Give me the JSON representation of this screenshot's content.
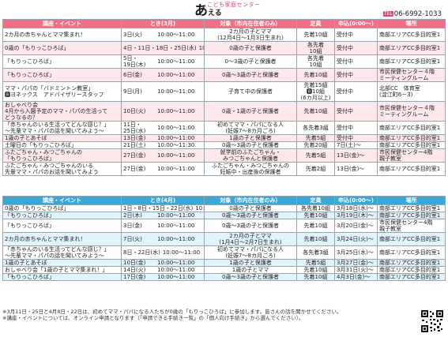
{
  "header": {
    "subtitle": "こども家庭センター",
    "brand_big": "あ",
    "brand_small": "える",
    "phone_icon": "TEL",
    "phone": "06-6992-1033"
  },
  "columns_march": [
    "講座・イベント",
    "とき(3月)",
    "対象（市内在住者のみ）",
    "定員",
    "申込(0:00～)",
    "場所"
  ],
  "columns_april": [
    "講座・イベント",
    "とき(4月)",
    "対象（市内在住者のみ）",
    "定員",
    "申込(0:00～)",
    "場所"
  ],
  "march_rows": [
    {
      "event": "2カ月の赤ちゃんとママ集まれ！",
      "date": "3日(火)",
      "time": "10:00～11:00",
      "target": "2カ月の子とママ\n(12月4日～1月3日生まれ)",
      "capacity": "先着10組",
      "apply": "受付中",
      "place": "南部エリアCC多目的室1"
    },
    {
      "event": "0歳の「もりっこひろば」",
      "date": "4日・11日・18日・25日(水)",
      "time": "10:00～11:00",
      "target": "0歳の子と保護者",
      "capacity": "各先着\n10組",
      "apply": "受付中",
      "place": "南部エリアCC多目的室1"
    },
    {
      "event": "「もりっこひろば」",
      "date": "5日・\n19日(木)",
      "time": "10:00～11:00",
      "target": "0～3歳の子と保護者",
      "capacity": "各先着\n10組",
      "apply": "受付中",
      "place": "南部エリアCC多目的室1"
    },
    {
      "event": "「もりっこひろば」",
      "date": "6日(金)",
      "time": "10:00～11:00",
      "target": "0歳～3歳の子と保護者",
      "capacity": "先着10組",
      "apply": "受付中",
      "place": "市民保健センター４階\nミーティングルーム"
    },
    {
      "event": "ママ・パパの「バドミントン教室」\n🅱ヨネックス　アドバイザリースタッフ",
      "date": "9日(月)",
      "time": "10:00～11:00",
      "target": "子育て中の保護者",
      "capacity": "先着15組\n🅱10組\n(6カ月以上)",
      "apply": "受付中",
      "place": "北部CC　体育室\n(淀江町6－3)"
    },
    {
      "event": "おしゃべり会\n4月から入園予定のママ・パパの生活って\nどうなるの？",
      "date": "10日(火)",
      "time": "10:00～11:00",
      "target": "0歳・1歳の子と保護者",
      "capacity": "先着10組",
      "apply": "受付中",
      "place": "市民保健センター４階\nミーティングルーム"
    },
    {
      "event": "「赤ちゃんのいる生活ってどんな感じ？」\n～先輩ママ・パパの話を聞いてみよう～",
      "date": "11日・\n25日(水)",
      "time": "10:00～11:00",
      "target": "初めてママ・パパになる人\n(妊娠7～8カ月ごろ)",
      "capacity": "各先着3組",
      "apply": "受付中",
      "place": "南部エリアCC多目的室1"
    },
    {
      "event": "1歳の子とあそぼ",
      "date": "13日(金)",
      "time": "10:00～11:00",
      "target": "1歳の子と保護者",
      "capacity": "先着5組",
      "apply": "受付中",
      "place": "南部エリアCC多目的室1"
    },
    {
      "event": "土曜日の「もりっこひろば」",
      "date": "21日(土)",
      "time": "10:00～11:30",
      "target": "0歳～3歳の子と保護者",
      "capacity": "先着20組",
      "apply": "7日(土)～",
      "place": "南部エリアCC多目的室1"
    },
    {
      "event": "ふたごちゃん・みつごちゃんの\n「もりっこひろば」",
      "date": "27日(金)",
      "time": "10:00～11:00",
      "target": "就学前のふたごちゃん・\nみつごちゃんと保護者",
      "capacity": "先着5組",
      "apply": "13日(金)～",
      "place": "市民保健センター4階\n親子教室"
    },
    {
      "event": "ふたごちゃん・みつごちゃんのいる\n先輩ママ・パパのお話を聞いてみよう",
      "date": "27日(金)",
      "time": "10:00～11:00",
      "target": "ふたごちゃん・みつごちゃんの\n妊娠中・出産後の保護者",
      "capacity": "先着2組",
      "apply": "13日(金)～",
      "place": "南部エリアCC多目的室1"
    }
  ],
  "april_rows": [
    {
      "event": "0歳の「もりっこひろば」",
      "date": "1日・8日・15日・22日(水)",
      "time": "10:00～11:00",
      "target": "0歳の子と保護者",
      "capacity": "各先着10組",
      "apply": "3月18日(水)～",
      "place": "南部エリアCC多目的室1"
    },
    {
      "event": "「もりっこひろば」",
      "date": "2日(木)",
      "time": "10:00～11:00",
      "target": "0歳～3歳の子と保護者",
      "capacity": "先着10組",
      "apply": "3月19日(木)～",
      "place": "南部エリアCC多目的室1"
    },
    {
      "event": "「もりっこひろば」",
      "date": "3日(金)",
      "time": "10:00～11:00",
      "target": "0歳～3歳の子と保護者",
      "capacity": "先着10組",
      "apply": "3月20日(金)～",
      "place": "市民保健センター4階\n親子教室"
    },
    {
      "event": "2カ月の赤ちゃんとママ集まれ！",
      "date": "7日(火)",
      "time": "10:00～11:00",
      "target": "2カ月の子とママ\n(1月4日～2月7日生まれ)",
      "capacity": "先着10組",
      "apply": "3月24日(火)～",
      "place": "南部エリアCC多目的室1"
    },
    {
      "event": "「赤ちゃんのいる生活ってどんな感じ？」\n～先輩ママ・パパの話を聞いてみよう～",
      "date": "8日・22日(水)",
      "time": "10:00～11:00",
      "target": "初めてママ・パパになる人\n(妊娠7～8カ月ごろ)",
      "capacity": "各先着3組",
      "apply": "3月25日(水)～",
      "place": "南部エリアCC多目的室1"
    },
    {
      "event": "1歳の子とあそぼ",
      "date": "10日(金)",
      "time": "10:00～11:00",
      "target": "1歳の子と保護者",
      "capacity": "先着5組",
      "apply": "3月27日(金)～",
      "place": "南部エリアCC多目的室1"
    },
    {
      "event": "おしゃべり会「1歳の子とママ集まれ！」",
      "date": "14日(火)",
      "time": "10:00～11:00",
      "target": "1歳の子とママ",
      "capacity": "先着10組",
      "apply": "3月31日(火)～",
      "place": "南部エリアCC多目的室1"
    },
    {
      "event": "「もりっこひろば」",
      "date": "17日(金)",
      "time": "10:00～11:00",
      "target": "0歳～3歳の子と保護者",
      "capacity": "先着10組",
      "apply": "4月3日(金)～",
      "place": "南部エリアCC多目的室1"
    }
  ],
  "notes": [
    "※3月11日・25日と4月8日・22日は、初めてママ・パパになる人たちが0歳の「もりっこひろば」に参加します。皆さんの話を聞かせてください。",
    "※講座・イベントについては、オンライン申請となります（「申請できる手続き一覧」の「個人向け手続き」から選んでください）。"
  ],
  "qr_label": "QR"
}
